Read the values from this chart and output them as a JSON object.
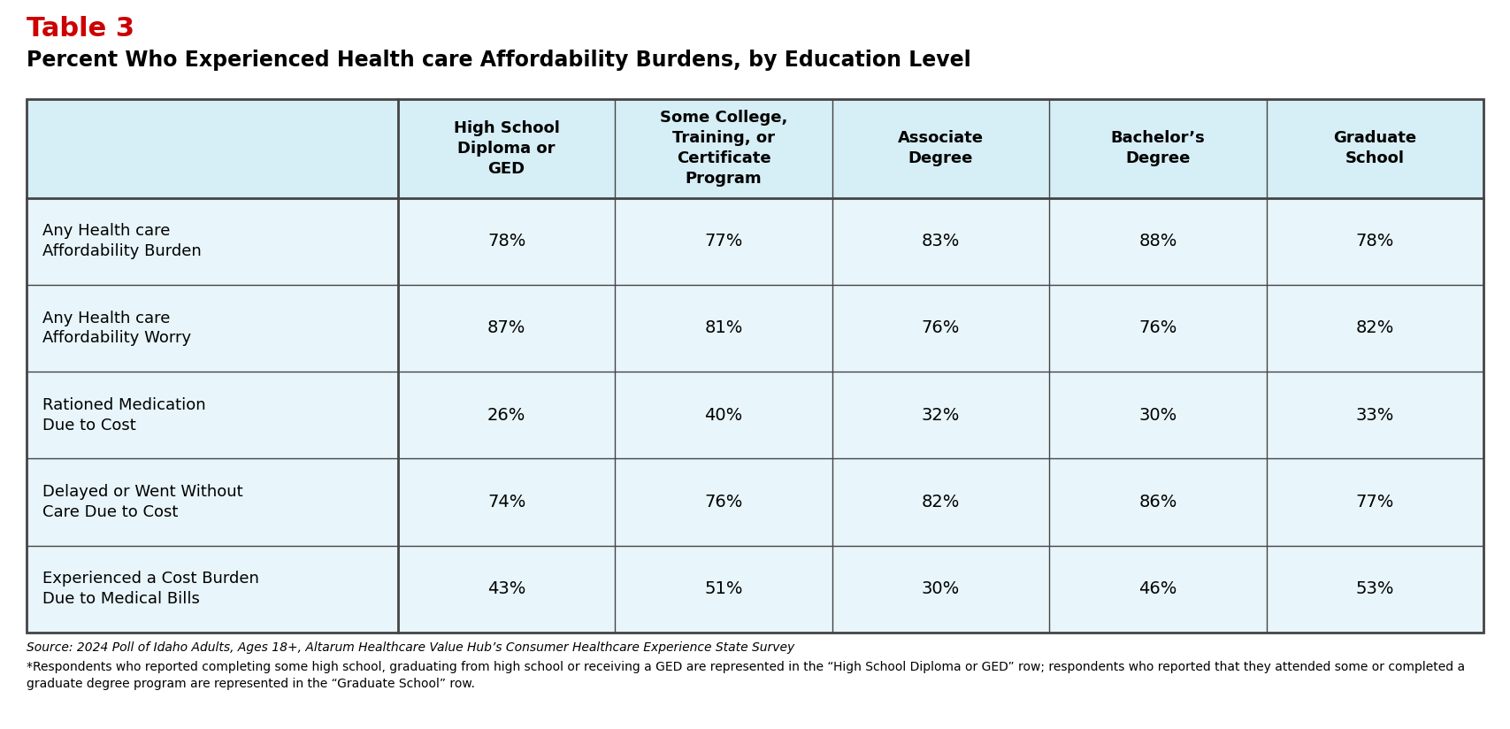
{
  "table_label": "Table 3",
  "table_label_color": "#cc0000",
  "title": "Percent Who Experienced Health care Affordability Burdens, by Education Level",
  "title_color": "#000000",
  "col_headers": [
    "High School\nDiploma or\nGED",
    "Some College,\nTraining, or\nCertificate\nProgram",
    "Associate\nDegree",
    "Bachelor’s\nDegree",
    "Graduate\nSchool"
  ],
  "row_labels": [
    "Any Health care\nAffordability Burden",
    "Any Health care\nAffordability Worry",
    "Rationed Medication\nDue to Cost",
    "Delayed or Went Without\nCare Due to Cost",
    "Experienced a Cost Burden\nDue to Medical Bills"
  ],
  "data": [
    [
      "78%",
      "77%",
      "83%",
      "88%",
      "78%"
    ],
    [
      "87%",
      "81%",
      "76%",
      "76%",
      "82%"
    ],
    [
      "26%",
      "40%",
      "32%",
      "30%",
      "33%"
    ],
    [
      "74%",
      "76%",
      "82%",
      "86%",
      "77%"
    ],
    [
      "43%",
      "51%",
      "30%",
      "46%",
      "53%"
    ]
  ],
  "header_bg_color": "#d6eef5",
  "data_row_bg_color": "#e8f5fa",
  "border_color": "#444444",
  "header_text_color": "#000000",
  "row_label_text_color": "#000000",
  "data_text_color": "#000000",
  "footnote_source": "Source: 2024 Poll of Idaho Adults, Ages 18+, Altarum Healthcare Value Hub’s Consumer Healthcare Experience State Survey",
  "footnote_star": "*Respondents who reported completing some high school, graduating from high school or receiving a GED are represented in the “High School Diploma or GED” row; respondents who reported that they attended some or completed a graduate degree program are represented in the “Graduate School” row.",
  "bg_color": "#ffffff",
  "table_label_fontsize": 22,
  "title_fontsize": 17,
  "header_fontsize": 13,
  "row_label_fontsize": 13,
  "data_fontsize": 14,
  "footnote_fontsize": 10
}
